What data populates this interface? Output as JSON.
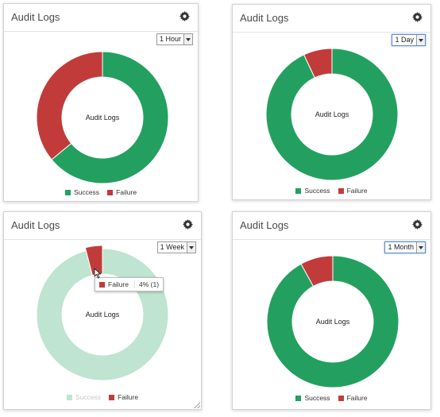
{
  "colors": {
    "success": "#23a05f",
    "failure": "#c23b3b",
    "success_faded": "#bfe4d1"
  },
  "icons": {
    "settings": "gear-icon",
    "dropdown": "chevron-down-icon"
  },
  "panels": [
    {
      "title": "Audit Logs",
      "range": {
        "selected": "1 Hour",
        "focused": false
      },
      "center_label": "Audit Logs",
      "legend": [
        {
          "label": "Success",
          "visible": true
        },
        {
          "label": "Failure",
          "visible": true
        }
      ]
    },
    {
      "title": "Audit Logs",
      "range": {
        "selected": "1 Day",
        "focused": true
      },
      "center_label": "Audit Logs",
      "legend": [
        {
          "label": "Success",
          "visible": true
        },
        {
          "label": "Failure",
          "visible": true
        }
      ]
    },
    {
      "title": "Audit Logs",
      "range": {
        "selected": "1 Week",
        "focused": false
      },
      "center_label": "Audit Logs",
      "legend": [
        {
          "label": "Success",
          "visible": false
        },
        {
          "label": "Failure",
          "visible": true
        }
      ],
      "tooltip": {
        "label": "Failure",
        "value": "4% (1)"
      }
    },
    {
      "title": "Audit Logs",
      "range": {
        "selected": "1 Month",
        "focused": true
      },
      "center_label": "Audit Logs",
      "legend": [
        {
          "label": "Success",
          "visible": true
        },
        {
          "label": "Failure",
          "visible": true
        }
      ]
    }
  ],
  "chart_data": [
    {
      "type": "pie",
      "donut": true,
      "categories": [
        "Success",
        "Failure"
      ],
      "values": [
        64,
        36
      ],
      "title": "Audit Logs"
    },
    {
      "type": "pie",
      "donut": true,
      "categories": [
        "Success",
        "Failure"
      ],
      "values": [
        93,
        7
      ],
      "title": "Audit Logs"
    },
    {
      "type": "pie",
      "donut": true,
      "categories": [
        "Success",
        "Failure"
      ],
      "values": [
        96,
        4
      ],
      "title": "Audit Logs",
      "hidden_series": [
        "Success"
      ]
    },
    {
      "type": "pie",
      "donut": true,
      "categories": [
        "Success",
        "Failure"
      ],
      "values": [
        92,
        8
      ],
      "title": "Audit Logs"
    }
  ]
}
